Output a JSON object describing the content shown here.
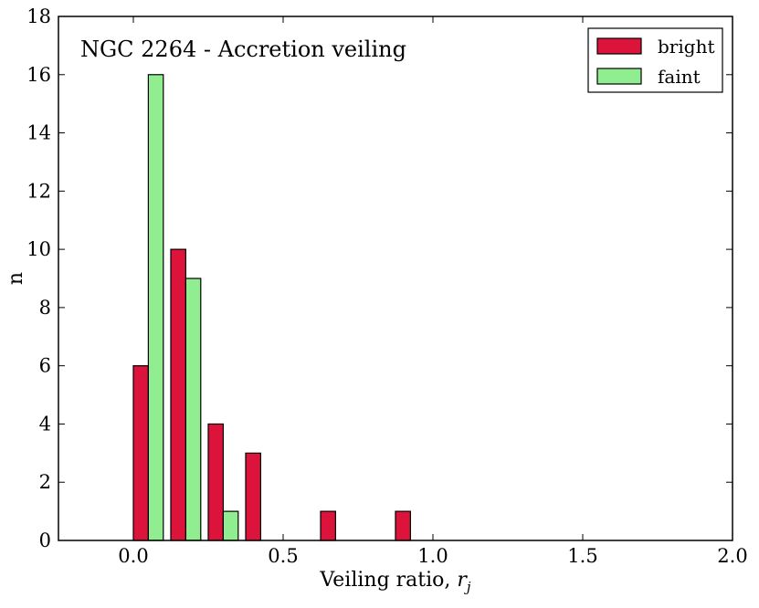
{
  "chart_data": {
    "type": "bar",
    "title": "NGC 2264 - Accretion veiling",
    "xlabel": "Veiling ratio, ",
    "xlabel_symbol": "r",
    "xlabel_subscript": "j",
    "ylabel": "n",
    "xlim": [
      -0.25,
      2.0
    ],
    "ylim": [
      0,
      18
    ],
    "xticks": [
      0.0,
      0.5,
      1.0,
      1.5,
      2.0
    ],
    "xtick_labels": [
      "0.0",
      "0.5",
      "1.0",
      "1.5",
      "2.0"
    ],
    "yticks": [
      0,
      2,
      4,
      6,
      8,
      10,
      12,
      14,
      16,
      18
    ],
    "ytick_labels": [
      "0",
      "2",
      "4",
      "6",
      "8",
      "10",
      "12",
      "14",
      "16",
      "18"
    ],
    "bar_width": 0.05,
    "legend_position": "top-right",
    "grid": false,
    "series": [
      {
        "name": "bright",
        "color": "#dc143c",
        "points": [
          {
            "x": 0.025,
            "y": 6
          },
          {
            "x": 0.15,
            "y": 10
          },
          {
            "x": 0.275,
            "y": 4
          },
          {
            "x": 0.4,
            "y": 3
          },
          {
            "x": 0.65,
            "y": 1
          },
          {
            "x": 0.9,
            "y": 1
          }
        ]
      },
      {
        "name": "faint",
        "color": "#90ee90",
        "points": [
          {
            "x": 0.075,
            "y": 16
          },
          {
            "x": 0.2,
            "y": 9
          },
          {
            "x": 0.325,
            "y": 1
          }
        ]
      }
    ]
  }
}
